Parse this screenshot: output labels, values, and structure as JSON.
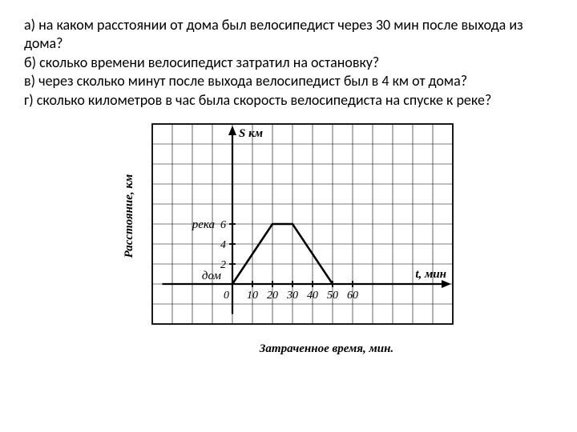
{
  "questions": {
    "a": "а) на каком расстоянии от дома был велосипедист через 30 мин после выхода из дома?",
    "b": "б) сколько времени велосипедист затратил на остановку?",
    "c": "в) через сколько минут после выхода велосипедист был в 4 км от дома?",
    "d": "г) сколько километров в час была скорость велосипедиста на спуске к реке?"
  },
  "chart": {
    "type": "line",
    "title": "",
    "y_axis": {
      "label_vertical": "Расстояние, км",
      "label_inline": "S км",
      "marker_label_river": "река",
      "marker_label_home": "дом",
      "ticks": [
        2,
        4,
        6
      ],
      "min": 0,
      "max": 7
    },
    "x_axis": {
      "label": "Затраченное время, мин.",
      "label_inline": "t, мин",
      "ticks": [
        10,
        20,
        30,
        40,
        50,
        60
      ],
      "min": 0,
      "max": 70,
      "origin_label": "0"
    },
    "grid": {
      "cell": 25,
      "cols": 15,
      "rows": 10,
      "color": "#000000",
      "stroke_width": 0.6
    },
    "data_points": [
      {
        "t": 0,
        "s": 0
      },
      {
        "t": 20,
        "s": 6
      },
      {
        "t": 30,
        "s": 6
      },
      {
        "t": 50,
        "s": 0
      }
    ],
    "line_color": "#000000",
    "line_width": 2.5,
    "axis_color": "#000000",
    "axis_width": 2.2,
    "background_color": "#ffffff",
    "font_family": "Times New Roman, serif",
    "font_style": "italic",
    "label_fontsize": 15,
    "tick_fontsize": 14
  }
}
